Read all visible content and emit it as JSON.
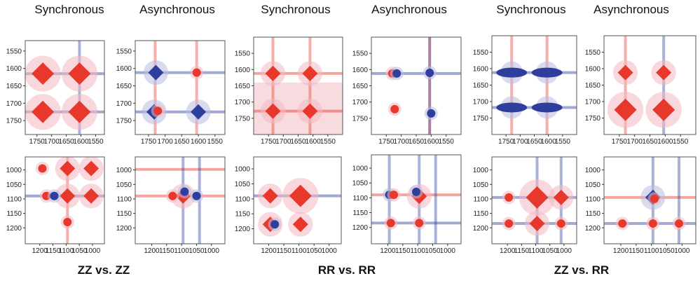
{
  "titles": [
    "Synchronous",
    "Asynchronous",
    "Synchronous",
    "Asynchronous",
    "Synchronous",
    "Asynchronous"
  ],
  "groups": [
    "ZZ vs. ZZ",
    "RR vs. RR",
    "ZZ vs. RR"
  ],
  "colors": {
    "positive": "#e8382c",
    "negative": "#2e3e9c",
    "halo": "#f2b8c0",
    "frame": "#555555"
  },
  "chart_data": [
    {
      "type": "heatmap",
      "kind": "synchronous",
      "comparison": "ZZ vs. ZZ",
      "range": [
        1520,
        1790
      ],
      "xticks": [
        1750,
        1700,
        1650,
        1600,
        1550
      ],
      "yticks": [
        1550,
        1600,
        1650,
        1700,
        1750
      ],
      "peaks": [
        [
          1730,
          1615,
          1,
          "L"
        ],
        [
          1605,
          1615,
          1,
          "L"
        ],
        [
          1730,
          1725,
          1,
          "L"
        ],
        [
          1605,
          1725,
          1,
          "L"
        ]
      ],
      "xlines": [
        [
          1615,
          -1
        ],
        [
          1725,
          -1
        ]
      ],
      "ylines": [
        [
          1605,
          -1
        ]
      ],
      "wash": false
    },
    {
      "type": "heatmap",
      "kind": "asynchronous",
      "comparison": "ZZ vs. ZZ",
      "range": [
        1520,
        1790
      ],
      "xticks": [
        1750,
        1700,
        1650,
        1600,
        1550
      ],
      "yticks": [
        1550,
        1600,
        1650,
        1700,
        1750
      ],
      "peaks": [
        [
          1728,
          1612,
          -1,
          "M"
        ],
        [
          1733,
          1725,
          -1,
          "M"
        ],
        [
          1600,
          1725,
          -1,
          "M"
        ],
        [
          1722,
          1722,
          1,
          "S"
        ],
        [
          1605,
          1612,
          1,
          "S"
        ]
      ],
      "xlines": [
        [
          1612,
          -1
        ],
        [
          1725,
          -1
        ]
      ],
      "ylines": [
        [
          1730,
          1
        ],
        [
          1605,
          1
        ]
      ],
      "wash": false
    },
    {
      "type": "heatmap",
      "kind": "synchronous",
      "comparison": "RR vs. RR",
      "range": [
        1500,
        1800
      ],
      "xticks": [
        1750,
        1700,
        1650,
        1600,
        1550
      ],
      "yticks": [
        1550,
        1600,
        1650,
        1700,
        1750
      ],
      "peaks": [
        [
          1735,
          1612,
          1,
          "M"
        ],
        [
          1610,
          1612,
          1,
          "M"
        ],
        [
          1735,
          1728,
          1,
          "M"
        ],
        [
          1610,
          1728,
          1,
          "M"
        ]
      ],
      "xlines": [
        [
          1612,
          1
        ],
        [
          1728,
          1
        ]
      ],
      "ylines": [
        [
          1735,
          1
        ],
        [
          1610,
          1
        ]
      ],
      "wash": true
    },
    {
      "type": "heatmap",
      "kind": "asynchronous",
      "comparison": "RR vs. RR",
      "range": [
        1500,
        1800
      ],
      "xticks": [
        1750,
        1700,
        1650,
        1600,
        1550
      ],
      "yticks": [
        1550,
        1600,
        1650,
        1700,
        1750
      ],
      "peaks": [
        [
          1730,
          1612,
          1,
          "S"
        ],
        [
          1715,
          1612,
          -1,
          "S"
        ],
        [
          1605,
          1610,
          -1,
          "S"
        ],
        [
          1722,
          1722,
          1,
          "S"
        ],
        [
          1600,
          1735,
          -1,
          "S"
        ]
      ],
      "xlines": [
        [
          1612,
          -1
        ]
      ],
      "ylines": [
        [
          1605,
          1
        ],
        [
          1605,
          -1
        ]
      ],
      "wash": false
    },
    {
      "type": "heatmap",
      "kind": "synchronous",
      "comparison": "ZZ vs. RR",
      "range": [
        1500,
        1800
      ],
      "xticks": [
        1750,
        1700,
        1650,
        1600,
        1550
      ],
      "yticks": [
        1550,
        1600,
        1650,
        1700,
        1750
      ],
      "peaks": [
        [
          1730,
          1612,
          -1,
          "W"
        ],
        [
          1605,
          1612,
          -1,
          "W"
        ],
        [
          1730,
          1718,
          -1,
          "W"
        ],
        [
          1605,
          1718,
          -1,
          "W"
        ]
      ],
      "xlines": [
        [
          1612,
          -1
        ],
        [
          1718,
          -1
        ]
      ],
      "ylines": [
        [
          1730,
          1
        ],
        [
          1605,
          1
        ]
      ],
      "wash": false
    },
    {
      "type": "heatmap",
      "kind": "asynchronous",
      "comparison": "ZZ vs. RR",
      "range": [
        1500,
        1800
      ],
      "xticks": [
        1750,
        1700,
        1650,
        1600,
        1550
      ],
      "yticks": [
        1550,
        1600,
        1650,
        1700,
        1750
      ],
      "peaks": [
        [
          1730,
          1612,
          1,
          "M"
        ],
        [
          1605,
          1612,
          1,
          "M"
        ],
        [
          1730,
          1725,
          1,
          "L"
        ],
        [
          1605,
          1725,
          1,
          "L"
        ]
      ],
      "xlines": [],
      "ylines": [
        [
          1730,
          1
        ],
        [
          1605,
          -1
        ]
      ],
      "wash": false
    },
    {
      "type": "heatmap",
      "kind": "synchronous",
      "comparison": "ZZ vs. ZZ",
      "range": [
        955,
        1255
      ],
      "xticks": [
        1200,
        1150,
        1100,
        1050,
        1000
      ],
      "yticks": [
        1000,
        1050,
        1100,
        1150,
        1200
      ],
      "peaks": [
        [
          1095,
          995,
          1,
          "M"
        ],
        [
          1005,
          995,
          1,
          "M"
        ],
        [
          1095,
          1090,
          1,
          "M"
        ],
        [
          1005,
          1090,
          1,
          "M"
        ],
        [
          1175,
          1090,
          1,
          "S"
        ],
        [
          1145,
          1090,
          -1,
          "S"
        ],
        [
          1190,
          995,
          1,
          "S"
        ],
        [
          1095,
          1180,
          1,
          "S"
        ]
      ],
      "xlines": [
        [
          1090,
          -1
        ]
      ],
      "ylines": [
        [
          1095,
          1
        ]
      ],
      "wash": false
    },
    {
      "type": "heatmap",
      "kind": "asynchronous",
      "comparison": "ZZ vs. ZZ",
      "range": [
        955,
        1255
      ],
      "xticks": [
        1200,
        1150,
        1100,
        1050,
        1000
      ],
      "yticks": [
        1000,
        1050,
        1100,
        1150,
        1200
      ],
      "peaks": [
        [
          1095,
          1090,
          1,
          "M"
        ],
        [
          1090,
          1075,
          -1,
          "S"
        ],
        [
          1130,
          1090,
          1,
          "S"
        ],
        [
          1050,
          1090,
          -1,
          "S"
        ]
      ],
      "xlines": [
        [
          1090,
          1
        ],
        [
          998,
          1
        ]
      ],
      "ylines": [
        [
          1095,
          -1
        ],
        [
          1040,
          -1
        ]
      ],
      "wash": false
    },
    {
      "type": "heatmap",
      "kind": "synchronous",
      "comparison": "RR vs. RR",
      "range": [
        960,
        1250
      ],
      "xticks": [
        1200,
        1150,
        1100,
        1050,
        1000
      ],
      "yticks": [
        1000,
        1050,
        1100,
        1150,
        1200
      ],
      "peaks": [
        [
          1195,
          1090,
          1,
          "M"
        ],
        [
          1095,
          1090,
          1,
          "L"
        ],
        [
          1195,
          1185,
          1,
          "M"
        ],
        [
          1095,
          1185,
          1,
          "M"
        ],
        [
          1180,
          1185,
          -1,
          "S"
        ]
      ],
      "xlines": [
        [
          1090,
          -1
        ]
      ],
      "ylines": [],
      "wash": false
    },
    {
      "type": "heatmap",
      "kind": "asynchronous",
      "comparison": "RR vs. RR",
      "range": [
        955,
        1255
      ],
      "xticks": [
        1200,
        1150,
        1100,
        1050,
        1000
      ],
      "yticks": [
        1000,
        1050,
        1100,
        1150,
        1200
      ],
      "peaks": [
        [
          1195,
          1090,
          -1,
          "S"
        ],
        [
          1180,
          1090,
          1,
          "S"
        ],
        [
          1095,
          1095,
          1,
          "M"
        ],
        [
          1105,
          1080,
          -1,
          "S"
        ],
        [
          1190,
          1185,
          1,
          "S"
        ],
        [
          1095,
          1185,
          1,
          "S"
        ]
      ],
      "xlines": [
        [
          1090,
          1
        ],
        [
          1185,
          -1
        ]
      ],
      "ylines": [
        [
          1195,
          -1
        ],
        [
          1095,
          -1
        ],
        [
          1040,
          -1
        ]
      ],
      "wash": false
    },
    {
      "type": "heatmap",
      "kind": "synchronous",
      "comparison": "ZZ vs. RR",
      "range": [
        955,
        1255
      ],
      "xticks": [
        1200,
        1150,
        1100,
        1050,
        1000
      ],
      "yticks": [
        1000,
        1050,
        1100,
        1150,
        1200
      ],
      "peaks": [
        [
          1095,
          1095,
          1,
          "L"
        ],
        [
          1010,
          1095,
          1,
          "M"
        ],
        [
          1195,
          1095,
          1,
          "S"
        ],
        [
          1095,
          1185,
          1,
          "M"
        ],
        [
          1010,
          1185,
          1,
          "S"
        ],
        [
          1195,
          1185,
          1,
          "S"
        ]
      ],
      "xlines": [
        [
          1095,
          -1
        ],
        [
          1185,
          -1
        ]
      ],
      "ylines": [
        [
          1095,
          -1
        ],
        [
          1010,
          -1
        ]
      ],
      "wash": false
    },
    {
      "type": "heatmap",
      "kind": "asynchronous",
      "comparison": "ZZ vs. RR",
      "range": [
        955,
        1255
      ],
      "xticks": [
        1200,
        1150,
        1100,
        1050,
        1000
      ],
      "yticks": [
        1000,
        1050,
        1100,
        1150,
        1200
      ],
      "peaks": [
        [
          1095,
          1095,
          -1,
          "M"
        ],
        [
          1090,
          1100,
          1,
          "S"
        ],
        [
          1195,
          1185,
          1,
          "S"
        ],
        [
          1095,
          1185,
          1,
          "S"
        ],
        [
          1010,
          1185,
          1,
          "S"
        ]
      ],
      "xlines": [
        [
          1095,
          1
        ],
        [
          1185,
          -1
        ]
      ],
      "ylines": [
        [
          1095,
          -1
        ],
        [
          1010,
          -1
        ]
      ],
      "wash": false
    }
  ]
}
